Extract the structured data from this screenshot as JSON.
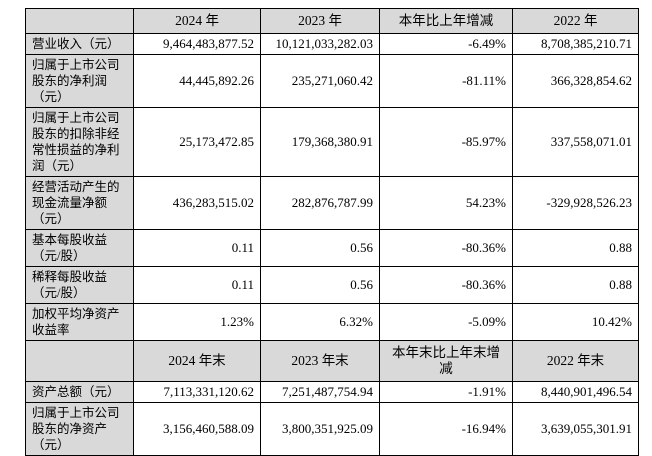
{
  "colors": {
    "header_bg": "#d9d9d9",
    "label_bg": "#d9d9d9",
    "border": "#000000",
    "text": "#000000",
    "page_bg": "#ffffff"
  },
  "table": {
    "sections": [
      {
        "header": [
          "",
          "2024 年",
          "2023 年",
          "本年比上年增减",
          "2022 年"
        ],
        "rows": [
          [
            "营业收入（元）",
            "9,464,483,877.52",
            "10,121,033,282.03",
            "-6.49%",
            "8,708,385,210.71"
          ],
          [
            "归属于上市公司股东的净利润（元）",
            "44,445,892.26",
            "235,271,060.42",
            "-81.11%",
            "366,328,854.62"
          ],
          [
            "归属于上市公司股东的扣除非经常性损益的净利润（元）",
            "25,173,472.85",
            "179,368,380.91",
            "-85.97%",
            "337,558,071.01"
          ],
          [
            "经营活动产生的现金流量净额（元）",
            "436,283,515.02",
            "282,876,787.99",
            "54.23%",
            "-329,928,526.23"
          ],
          [
            "基本每股收益（元/股）",
            "0.11",
            "0.56",
            "-80.36%",
            "0.88"
          ],
          [
            "稀释每股收益（元/股）",
            "0.11",
            "0.56",
            "-80.36%",
            "0.88"
          ],
          [
            "加权平均净资产收益率",
            "1.23%",
            "6.32%",
            "-5.09%",
            "10.42%"
          ]
        ]
      },
      {
        "header": [
          "",
          "2024 年末",
          "2023 年末",
          "本年末比上年末增减",
          "2022 年末"
        ],
        "rows": [
          [
            "资产总额（元）",
            "7,113,331,120.62",
            "7,251,487,754.94",
            "-1.91%",
            "8,440,901,496.54"
          ],
          [
            "归属于上市公司股东的净资产（元）",
            "3,156,460,588.09",
            "3,800,351,925.09",
            "-16.94%",
            "3,639,055,301.91"
          ]
        ]
      }
    ]
  }
}
